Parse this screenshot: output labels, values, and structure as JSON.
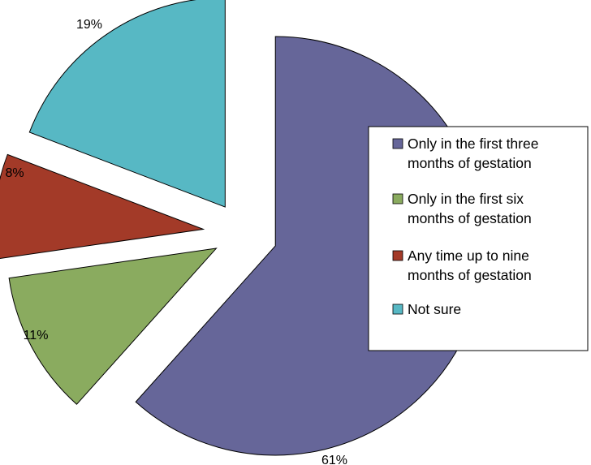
{
  "chart_data": {
    "type": "pie",
    "series": [
      {
        "name": "Only in the first three months of gestation",
        "value": 61,
        "label": "61%",
        "color": "#666699"
      },
      {
        "name": "Only in the first six months of gestation",
        "value": 11,
        "label": "11%",
        "color": "#8aab5f"
      },
      {
        "name": "Any time up to nine months of gestation",
        "value": 8,
        "label": "8%",
        "color": "#a33a28"
      },
      {
        "name": "Not sure",
        "value": 19,
        "label": "19%",
        "color": "#57b8c4"
      }
    ],
    "legend": {
      "placement": "right",
      "entries": [
        [
          "Only in the first three",
          "months of gestation"
        ],
        [
          "Only in the first six",
          "months of gestation"
        ],
        [
          "Any time up to nine",
          "months of gestation"
        ],
        [
          "Not sure"
        ]
      ]
    }
  }
}
